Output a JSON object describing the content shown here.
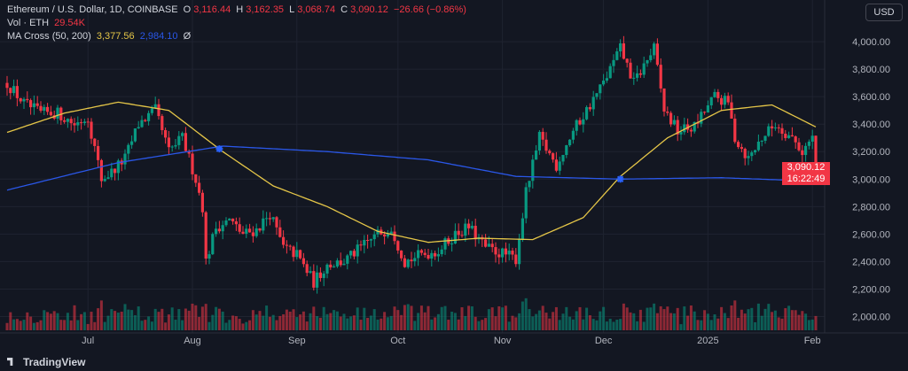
{
  "legend": {
    "symbol": "Ethereum / U.S. Dollar, 1D, COINBASE",
    "o_label": "O",
    "o": "3,116.44",
    "h_label": "H",
    "h": "3,162.35",
    "l_label": "L",
    "l": "3,068.74",
    "c_label": "C",
    "c": "3,090.12",
    "change": "−26.66 (−0.86%)",
    "vol_label": "Vol · ETH",
    "vol": "29.54K",
    "ma_label": "MA Cross (50, 200)",
    "ma50": "3,377.56",
    "ma200": "2,984.10",
    "ma_icon": "Ø"
  },
  "currency_button": "USD",
  "price_tag": {
    "price": "3,090.12",
    "countdown": "16:22:49"
  },
  "branding": "TradingView",
  "colors": {
    "bg": "#131722",
    "up": "#089981",
    "down": "#f23645",
    "ma50": "#e5c648",
    "ma200": "#2a57e8",
    "cross": "#2962ff",
    "grid": "#1f2330"
  },
  "chart_data": {
    "type": "candlestick",
    "title": "Ethereum / U.S. Dollar, 1D, COINBASE",
    "y_ticks": [
      "2,000.00",
      "2,200.00",
      "2,400.00",
      "2,600.00",
      "2,800.00",
      "3,000.00",
      "3,200.00",
      "3,400.00",
      "3,600.00",
      "3,800.00",
      "4,000.00"
    ],
    "y_tick_values": [
      2000,
      2200,
      2400,
      2600,
      2800,
      3000,
      3200,
      3400,
      3600,
      3800,
      4000
    ],
    "ylim": [
      1900,
      4110
    ],
    "x_ticks": [
      "Jul",
      "Aug",
      "Sep",
      "Oct",
      "Nov",
      "Dec",
      "2025",
      "Feb"
    ],
    "x_tick_dates": [
      "2024-07-01",
      "2024-08-01",
      "2024-09-01",
      "2024-10-01",
      "2024-11-01",
      "2024-12-01",
      "2025-01-01",
      "2025-02-01"
    ],
    "start_date": "2024-06-07",
    "end_date": "2025-02-02",
    "close_anchors": [
      [
        "2024-06-07",
        3700
      ],
      [
        "2024-06-12",
        3550
      ],
      [
        "2024-06-17",
        3480
      ],
      [
        "2024-06-22",
        3480
      ],
      [
        "2024-06-27",
        3400
      ],
      [
        "2024-07-01",
        3450
      ],
      [
        "2024-07-05",
        3000
      ],
      [
        "2024-07-08",
        3050
      ],
      [
        "2024-07-12",
        3150
      ],
      [
        "2024-07-16",
        3400
      ],
      [
        "2024-07-21",
        3500
      ],
      [
        "2024-07-25",
        3200
      ],
      [
        "2024-07-29",
        3300
      ],
      [
        "2024-08-02",
        3000
      ],
      [
        "2024-08-04",
        2800
      ],
      [
        "2024-08-05",
        2400
      ],
      [
        "2024-08-08",
        2650
      ],
      [
        "2024-08-12",
        2700
      ],
      [
        "2024-08-16",
        2600
      ],
      [
        "2024-08-20",
        2630
      ],
      [
        "2024-08-24",
        2750
      ],
      [
        "2024-08-28",
        2500
      ],
      [
        "2024-09-01",
        2450
      ],
      [
        "2024-09-06",
        2250
      ],
      [
        "2024-09-10",
        2380
      ],
      [
        "2024-09-15",
        2400
      ],
      [
        "2024-09-20",
        2500
      ],
      [
        "2024-09-25",
        2600
      ],
      [
        "2024-09-29",
        2650
      ],
      [
        "2024-10-03",
        2400
      ],
      [
        "2024-10-08",
        2450
      ],
      [
        "2024-10-13",
        2480
      ],
      [
        "2024-10-18",
        2600
      ],
      [
        "2024-10-22",
        2650
      ],
      [
        "2024-10-27",
        2500
      ],
      [
        "2024-11-02",
        2450
      ],
      [
        "2024-11-05",
        2420
      ],
      [
        "2024-11-08",
        2900
      ],
      [
        "2024-11-12",
        3300
      ],
      [
        "2024-11-17",
        3100
      ],
      [
        "2024-11-22",
        3350
      ],
      [
        "2024-11-26",
        3500
      ],
      [
        "2024-12-01",
        3700
      ],
      [
        "2024-12-06",
        3950
      ],
      [
        "2024-12-10",
        3700
      ],
      [
        "2024-12-16",
        3950
      ],
      [
        "2024-12-19",
        3500
      ],
      [
        "2024-12-23",
        3350
      ],
      [
        "2024-12-28",
        3380
      ],
      [
        "2025-01-03",
        3600
      ],
      [
        "2025-01-07",
        3550
      ],
      [
        "2025-01-09",
        3300
      ],
      [
        "2025-01-13",
        3150
      ],
      [
        "2025-01-17",
        3300
      ],
      [
        "2025-01-21",
        3400
      ],
      [
        "2025-01-26",
        3300
      ],
      [
        "2025-01-29",
        3200
      ],
      [
        "2025-02-01",
        3300
      ],
      [
        "2025-02-02",
        3090
      ]
    ],
    "close": 3090.12,
    "ma50_anchors": [
      [
        "2024-06-07",
        3340
      ],
      [
        "2024-06-24",
        3480
      ],
      [
        "2024-07-10",
        3560
      ],
      [
        "2024-07-25",
        3500
      ],
      [
        "2024-08-10",
        3200
      ],
      [
        "2024-08-25",
        2950
      ],
      [
        "2024-09-10",
        2800
      ],
      [
        "2024-09-25",
        2620
      ],
      [
        "2024-10-10",
        2540
      ],
      [
        "2024-10-25",
        2570
      ],
      [
        "2024-11-10",
        2560
      ],
      [
        "2024-11-25",
        2720
      ],
      [
        "2024-12-06",
        3020
      ],
      [
        "2024-12-20",
        3300
      ],
      [
        "2025-01-05",
        3500
      ],
      [
        "2025-01-20",
        3540
      ],
      [
        "2025-02-02",
        3380
      ]
    ],
    "ma200_anchors": [
      [
        "2024-06-07",
        2920
      ],
      [
        "2024-07-10",
        3120
      ],
      [
        "2024-08-10",
        3240
      ],
      [
        "2024-09-10",
        3200
      ],
      [
        "2024-10-10",
        3140
      ],
      [
        "2024-11-05",
        3020
      ],
      [
        "2024-12-06",
        3000
      ],
      [
        "2025-01-05",
        3010
      ],
      [
        "2025-02-02",
        2985
      ]
    ],
    "cross_events": [
      {
        "date": "2024-08-09",
        "value": 3220,
        "type": "death-cross"
      },
      {
        "date": "2024-12-06",
        "value": 3000,
        "type": "golden-cross"
      }
    ],
    "legend": [
      "Vol · ETH",
      "MA Cross (50, 200)"
    ]
  }
}
